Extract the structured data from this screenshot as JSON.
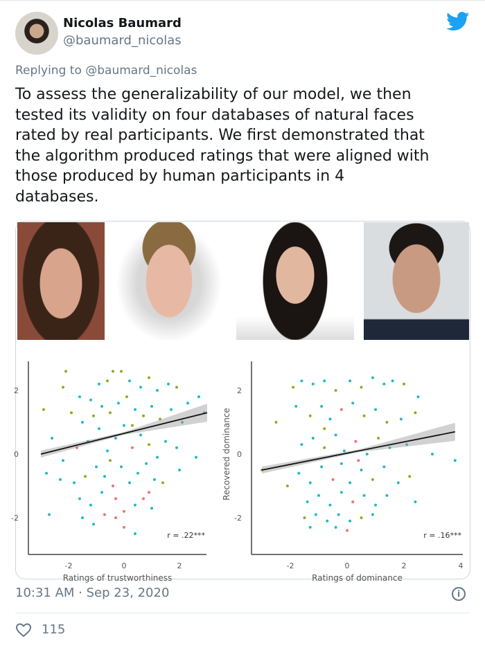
{
  "tweet": {
    "author_name": "Nicolas Baumard",
    "author_handle": "@baumard_nicolas",
    "replying_to": "Replying to @baumard_nicolas",
    "text": "To assess the generalizability of our model, we then\ntested its validity on four databases of natural faces\nrated by real participants. We first demonstrated that\nthe algorithm produced ratings that were aligned with\nthose produced by human participants in 4\ndatabases.",
    "timestamp": "10:31 AM · Sep 23, 2020",
    "likes": "115",
    "brand_color": "#1da1f2",
    "icons": [
      "twitter-bird-icon",
      "info-icon",
      "heart-icon"
    ]
  },
  "chart_data": [
    {
      "type": "scatter",
      "xlabel": "Ratings of trustworthiness",
      "ylabel": "",
      "annotation": "r = .22***",
      "xticks": [
        "-2",
        "0",
        "2"
      ],
      "yticks": [
        "2",
        "0",
        "-2"
      ],
      "xlim": [
        -3.2,
        3.2
      ],
      "ylim": [
        -2.9,
        2.9
      ],
      "series_colors": [
        "#1fbcc4",
        "#8cae1e",
        "#f07272"
      ],
      "fit": {
        "x": [
          -3,
          3
        ],
        "y": [
          0,
          1.3
        ]
      },
      "points": [
        [
          -2.9,
          1.4,
          1
        ],
        [
          -2.1,
          2.6,
          1
        ],
        [
          -2.2,
          2.1,
          1
        ],
        [
          -1.6,
          1.8,
          0
        ],
        [
          -1.2,
          1.7,
          0
        ],
        [
          -0.9,
          2.2,
          0
        ],
        [
          -0.6,
          2.3,
          1
        ],
        [
          -0.4,
          2.6,
          1
        ],
        [
          -0.1,
          2.6,
          1
        ],
        [
          0.2,
          2.3,
          0
        ],
        [
          0.6,
          2.1,
          0
        ],
        [
          0.9,
          2.4,
          1
        ],
        [
          1.2,
          2.0,
          0
        ],
        [
          1.6,
          2.2,
          0
        ],
        [
          1.9,
          2.1,
          1
        ],
        [
          2.3,
          1.6,
          0
        ],
        [
          2.7,
          1.8,
          0
        ],
        [
          2.9,
          1.3,
          0
        ],
        [
          -1.9,
          1.3,
          1
        ],
        [
          -1.5,
          1.0,
          0
        ],
        [
          -1.1,
          1.2,
          1
        ],
        [
          -0.8,
          1.5,
          0
        ],
        [
          -0.5,
          1.3,
          1
        ],
        [
          -0.2,
          1.6,
          0
        ],
        [
          0.1,
          1.8,
          1
        ],
        [
          0.4,
          1.4,
          0
        ],
        [
          0.7,
          1.2,
          1
        ],
        [
          1.0,
          1.5,
          0
        ],
        [
          1.3,
          1.1,
          1
        ],
        [
          1.7,
          1.4,
          0
        ],
        [
          2.1,
          1.0,
          0
        ],
        [
          -2.6,
          0.5,
          0
        ],
        [
          -2.2,
          -0.2,
          0
        ],
        [
          -1.7,
          0.2,
          2
        ],
        [
          -1.3,
          0.4,
          0
        ],
        [
          -0.9,
          0.8,
          0
        ],
        [
          -0.6,
          0.1,
          0
        ],
        [
          -0.3,
          0.5,
          0
        ],
        [
          0.0,
          0.9,
          0
        ],
        [
          0.3,
          0.2,
          2
        ],
        [
          0.6,
          0.6,
          0
        ],
        [
          0.9,
          0.3,
          1
        ],
        [
          1.2,
          -0.1,
          0
        ],
        [
          1.5,
          0.4,
          0
        ],
        [
          1.9,
          0.2,
          0
        ],
        [
          2.6,
          -0.1,
          0
        ],
        [
          -2.8,
          -0.6,
          0
        ],
        [
          -2.3,
          -0.8,
          0
        ],
        [
          -1.8,
          -0.9,
          0
        ],
        [
          -1.4,
          -0.7,
          1
        ],
        [
          -1.0,
          -0.4,
          0
        ],
        [
          -0.7,
          -0.7,
          0
        ],
        [
          -0.4,
          -1.0,
          2
        ],
        [
          -0.1,
          -0.4,
          0
        ],
        [
          0.2,
          -0.9,
          0
        ],
        [
          0.5,
          -0.6,
          0
        ],
        [
          0.8,
          -0.3,
          0
        ],
        [
          1.1,
          -0.8,
          0
        ],
        [
          1.4,
          -0.9,
          1
        ],
        [
          2.0,
          -0.5,
          0
        ],
        [
          -1.6,
          -1.4,
          0
        ],
        [
          -1.2,
          -1.6,
          0
        ],
        [
          -0.8,
          -1.2,
          0
        ],
        [
          -0.3,
          -1.4,
          2
        ],
        [
          0.0,
          -1.8,
          2
        ],
        [
          0.4,
          -1.6,
          0
        ],
        [
          0.7,
          -1.4,
          2
        ],
        [
          1.0,
          -1.7,
          0
        ],
        [
          -1.5,
          -2.0,
          0
        ],
        [
          -1.1,
          -2.2,
          0
        ],
        [
          -0.7,
          -1.9,
          2
        ],
        [
          -0.3,
          -2.0,
          2
        ],
        [
          0.0,
          -2.3,
          2
        ],
        [
          0.4,
          -2.5,
          0
        ],
        [
          -2.7,
          -1.9,
          0
        ],
        [
          0.9,
          -1.2,
          2
        ],
        [
          -0.5,
          -0.2,
          1
        ],
        [
          0.3,
          0.9,
          1
        ]
      ]
    },
    {
      "type": "scatter",
      "xlabel": "Ratings of dominance",
      "ylabel": "Recovered dominance",
      "annotation": "r = .16***",
      "xticks": [
        "-2",
        "0",
        "2",
        "4"
      ],
      "yticks": [
        "2",
        "0",
        "-2"
      ],
      "xlim": [
        -3.1,
        4
      ],
      "ylim": [
        -2.9,
        2.9
      ],
      "series_colors": [
        "#1fbcc4",
        "#8cae1e",
        "#f07272"
      ],
      "fit": {
        "x": [
          -3,
          3.8
        ],
        "y": [
          -0.5,
          0.7
        ]
      },
      "points": [
        [
          -3,
          -0.5,
          1
        ],
        [
          -2.5,
          1.0,
          1
        ],
        [
          -1.9,
          2.1,
          1
        ],
        [
          -1.6,
          2.3,
          0
        ],
        [
          -1.2,
          2.2,
          0
        ],
        [
          -0.8,
          2.3,
          0
        ],
        [
          -0.4,
          2.0,
          1
        ],
        [
          0.1,
          2.3,
          0
        ],
        [
          0.5,
          2.1,
          1
        ],
        [
          0.9,
          2.4,
          0
        ],
        [
          1.3,
          2.2,
          0
        ],
        [
          1.6,
          2.3,
          0
        ],
        [
          2.0,
          2.2,
          1
        ],
        [
          2.5,
          1.8,
          0
        ],
        [
          -1.8,
          1.5,
          0
        ],
        [
          -1.3,
          1.2,
          1
        ],
        [
          -0.9,
          1.5,
          0
        ],
        [
          -0.6,
          1.1,
          0
        ],
        [
          -0.2,
          1.4,
          2
        ],
        [
          0.2,
          1.6,
          0
        ],
        [
          0.6,
          1.2,
          1
        ],
        [
          1.0,
          1.4,
          0
        ],
        [
          1.4,
          1.0,
          1
        ],
        [
          1.9,
          1.1,
          0
        ],
        [
          2.4,
          1.3,
          1
        ],
        [
          -1.6,
          0.3,
          0
        ],
        [
          -1.2,
          0.5,
          0
        ],
        [
          -0.8,
          0.2,
          1
        ],
        [
          -0.4,
          0.6,
          0
        ],
        [
          -0.1,
          0.1,
          0
        ],
        [
          0.3,
          0.4,
          2
        ],
        [
          0.7,
          0.0,
          0
        ],
        [
          1.1,
          0.5,
          1
        ],
        [
          1.5,
          0.2,
          0
        ],
        [
          2.1,
          0.3,
          0
        ],
        [
          3.0,
          0.0,
          0
        ],
        [
          3.8,
          -0.2,
          0
        ],
        [
          -2.1,
          -1.0,
          1
        ],
        [
          -1.7,
          -0.6,
          0
        ],
        [
          -1.3,
          -0.9,
          0
        ],
        [
          -0.9,
          -0.4,
          0
        ],
        [
          -0.5,
          -0.8,
          2
        ],
        [
          -0.2,
          -0.3,
          0
        ],
        [
          0.1,
          -0.9,
          0
        ],
        [
          0.5,
          -0.5,
          0
        ],
        [
          0.9,
          -0.8,
          1
        ],
        [
          1.3,
          -0.4,
          0
        ],
        [
          1.8,
          -0.9,
          0
        ],
        [
          2.2,
          -0.7,
          1
        ],
        [
          -1.4,
          -1.5,
          0
        ],
        [
          -1.0,
          -1.3,
          0
        ],
        [
          -0.6,
          -1.6,
          0
        ],
        [
          -0.2,
          -1.2,
          0
        ],
        [
          0.2,
          -1.5,
          2
        ],
        [
          0.6,
          -1.3,
          0
        ],
        [
          1.0,
          -1.6,
          0
        ],
        [
          1.4,
          -1.3,
          0
        ],
        [
          -1.5,
          -2.0,
          1
        ],
        [
          -1.1,
          -1.9,
          0
        ],
        [
          -0.7,
          -2.1,
          0
        ],
        [
          -0.3,
          -1.9,
          0
        ],
        [
          0.1,
          -2.1,
          0
        ],
        [
          0.5,
          -2.0,
          1
        ],
        [
          0.9,
          -1.9,
          0
        ],
        [
          -1.3,
          -2.3,
          0
        ],
        [
          -0.4,
          -2.3,
          0
        ],
        [
          0.0,
          -2.4,
          2
        ],
        [
          2.4,
          -1.5,
          0
        ],
        [
          -0.8,
          0.8,
          1
        ],
        [
          0.4,
          -0.2,
          2
        ]
      ]
    }
  ]
}
